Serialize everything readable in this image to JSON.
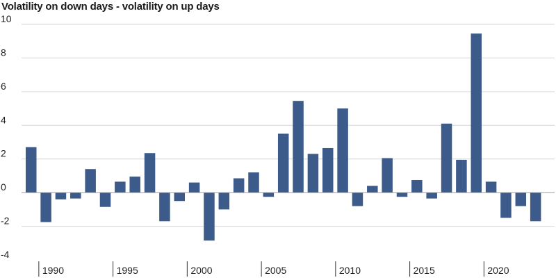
{
  "chart_data": {
    "type": "bar",
    "title": "Volatility on down days - volatility on up days",
    "xlabel": "",
    "ylabel": "",
    "ylim": [
      -4,
      10
    ],
    "y_ticks": [
      10,
      8,
      6,
      4,
      2,
      0,
      -2,
      -4
    ],
    "y_tick_labels": [
      "10",
      "8",
      "6",
      "4",
      "2",
      "0",
      "-2",
      "-4"
    ],
    "x_tick_labels": [
      "1990",
      "1995",
      "2000",
      "2005",
      "2010",
      "2015",
      "2020"
    ],
    "categories": [
      1989,
      1990,
      1991,
      1992,
      1993,
      1994,
      1995,
      1996,
      1997,
      1998,
      1999,
      2000,
      2001,
      2002,
      2003,
      2004,
      2005,
      2006,
      2007,
      2008,
      2009,
      2010,
      2011,
      2012,
      2013,
      2014,
      2015,
      2016,
      2017,
      2018,
      2019,
      2020,
      2021,
      2022,
      2023
    ],
    "values": [
      2.7,
      -1.75,
      -0.4,
      -0.35,
      1.4,
      -0.85,
      0.65,
      0.95,
      2.35,
      -1.7,
      -0.5,
      0.6,
      -2.85,
      -1.0,
      0.85,
      1.2,
      -0.25,
      3.5,
      5.45,
      2.3,
      2.65,
      5.0,
      -0.8,
      0.4,
      2.05,
      -0.25,
      0.75,
      -0.35,
      4.1,
      1.95,
      9.45,
      0.65,
      -1.5,
      -0.8,
      -1.7
    ],
    "grid": true,
    "legend": "none",
    "bar_color": "#3c5a8a"
  }
}
